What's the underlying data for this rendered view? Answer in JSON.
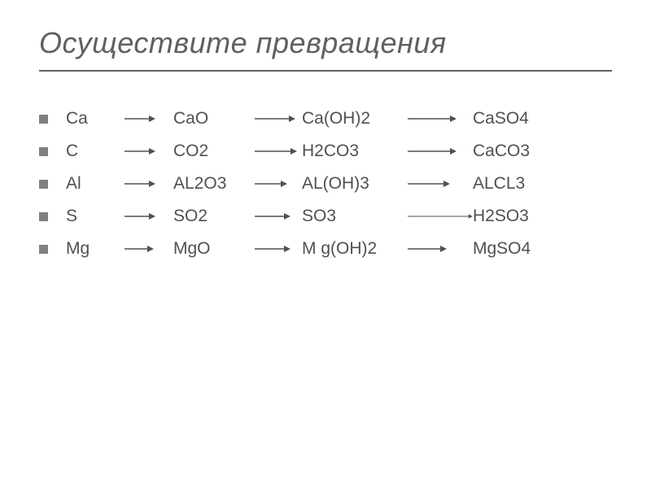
{
  "title": "Осуществите превращения",
  "text_color": "#505050",
  "title_color": "#606060",
  "rule_color": "#606060",
  "bullet_color": "#808080",
  "arrow_color": "#505050",
  "background_color": "#ffffff",
  "font_size_title": 36,
  "font_size_body": 21,
  "chains": [
    {
      "compounds": [
        "Ca",
        "CaO",
        "Ca(OH)2",
        "CaSO4"
      ],
      "arrow_lengths": [
        38,
        50,
        60
      ]
    },
    {
      "compounds": [
        "C",
        "CO2",
        "H2CO3",
        "CaCO3"
      ],
      "arrow_lengths": [
        38,
        52,
        60
      ]
    },
    {
      "compounds": [
        "Al",
        "AL2O3",
        "AL(OH)3",
        "ALCL3"
      ],
      "arrow_lengths": [
        38,
        40,
        52
      ]
    },
    {
      "compounds": [
        "S",
        "SO2",
        "SO3",
        "H2SO3"
      ],
      "arrow_lengths": [
        38,
        44,
        120
      ]
    },
    {
      "compounds": [
        "Mg",
        "MgO",
        "M g(OH)2",
        "MgSO4"
      ],
      "arrow_lengths": [
        36,
        44,
        48
      ]
    }
  ]
}
